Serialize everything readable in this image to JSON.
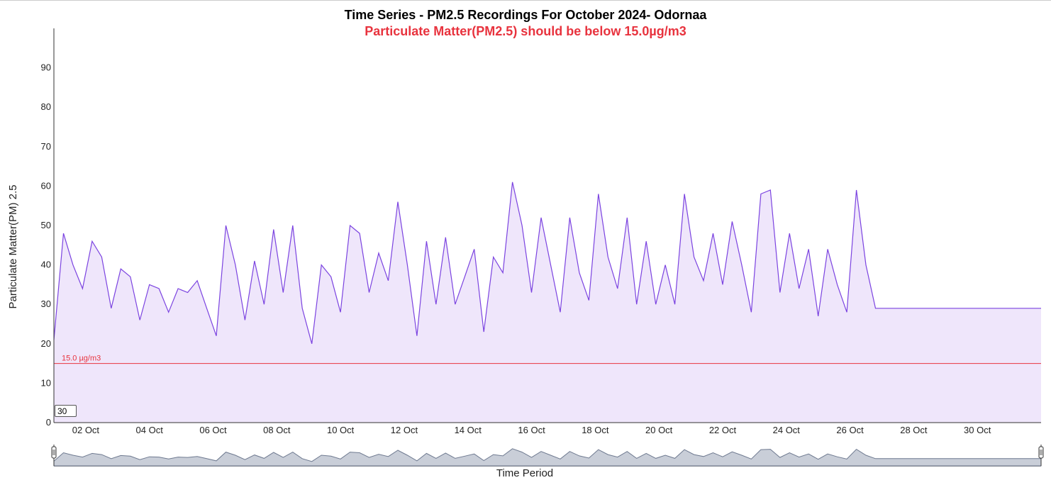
{
  "chart_data": {
    "type": "area",
    "title": "Time Series - PM2.5 Recordings For October 2024- Odornaa",
    "subtitle": "Particulate Matter(PM2.5) should be below 15.0µg/m3",
    "xlabel": "Time Period",
    "ylabel": "Particulate Matter(PM) 2.5",
    "ylim": [
      0,
      100
    ],
    "y_ticks": [
      "0",
      "10",
      "20",
      "30",
      "40",
      "50",
      "60",
      "70",
      "80",
      "90"
    ],
    "x_ticks": [
      "02 Oct",
      "04 Oct",
      "06 Oct",
      "08 Oct",
      "10 Oct",
      "12 Oct",
      "14 Oct",
      "16 Oct",
      "18 Oct",
      "20 Oct",
      "22 Oct",
      "24 Oct",
      "26 Oct",
      "28 Oct",
      "30 Oct"
    ],
    "xlim": [
      "2024-10-01",
      "2024-11-01"
    ],
    "threshold": {
      "value": 15.0,
      "label": "15.0 µg/m3",
      "color": "#e8333e"
    },
    "rolling_period": "30",
    "series": [
      {
        "color": "#7b43e0",
        "fill": "#efe6fb",
        "x": [
          1.0,
          1.3,
          1.6,
          1.9,
          2.2,
          2.5,
          2.8,
          3.1,
          3.4,
          3.7,
          4.0,
          4.3,
          4.6,
          4.9,
          5.2,
          5.5,
          5.8,
          6.1,
          6.4,
          6.7,
          7.0,
          7.3,
          7.6,
          7.9,
          8.2,
          8.5,
          8.8,
          9.1,
          9.4,
          9.7,
          10.0,
          10.3,
          10.6,
          10.9,
          11.2,
          11.5,
          11.8,
          12.1,
          12.4,
          12.7,
          13.0,
          13.3,
          13.6,
          13.9,
          14.2,
          14.5,
          14.8,
          15.1,
          15.4,
          15.7,
          16.0,
          16.3,
          16.6,
          16.9,
          17.2,
          17.5,
          17.8,
          18.1,
          18.4,
          18.7,
          19.0,
          19.3,
          19.6,
          19.9,
          20.2,
          20.5,
          20.8,
          21.1,
          21.4,
          21.7,
          22.0,
          22.3,
          22.6,
          22.9,
          23.2,
          23.5,
          23.8,
          24.1,
          24.4,
          24.7,
          25.0,
          25.3,
          25.6,
          25.9,
          26.2,
          26.5,
          26.8,
          27.1,
          27.4,
          27.7,
          28.0,
          28.3,
          28.6,
          28.9,
          29.2,
          29.5,
          29.8,
          30.1,
          30.4,
          30.7,
          31.0,
          31.3,
          31.6,
          31.9
        ],
        "values": [
          21,
          48,
          40,
          34,
          46,
          42,
          29,
          39,
          37,
          26,
          35,
          34,
          28,
          34,
          33,
          36,
          29,
          22,
          50,
          40,
          26,
          41,
          30,
          49,
          33,
          50,
          29,
          20,
          40,
          37,
          28,
          50,
          48,
          33,
          43,
          36,
          56,
          40,
          22,
          46,
          30,
          47,
          30,
          37,
          44,
          23,
          42,
          38,
          61,
          50,
          33,
          52,
          40,
          28,
          52,
          38,
          31,
          58,
          42,
          34,
          52,
          30,
          46,
          30,
          40,
          30,
          58,
          42,
          36,
          48,
          35,
          51,
          40,
          28,
          58,
          59,
          33,
          48,
          34,
          44,
          27,
          44,
          35,
          28,
          59,
          40,
          29,
          29,
          29,
          29,
          29,
          29,
          29,
          29,
          29,
          29,
          29,
          29,
          29,
          29,
          29,
          29,
          29,
          29
        ]
      }
    ]
  }
}
